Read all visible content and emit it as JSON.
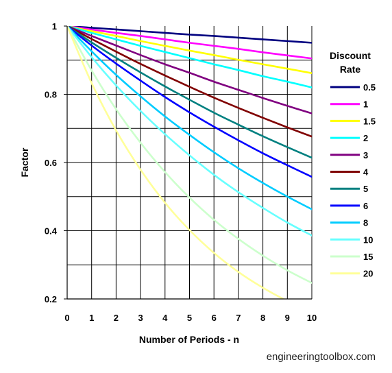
{
  "chart_data": {
    "type": "line",
    "xlabel": "Number of Periods - n",
    "ylabel": "Factor",
    "xlim": [
      0,
      10
    ],
    "ylim": [
      0.2,
      1
    ],
    "x_ticks": [
      "0",
      "1",
      "2",
      "3",
      "4",
      "5",
      "6",
      "7",
      "8",
      "9",
      "10"
    ],
    "y_ticks": [
      {
        "value": 0.2,
        "label": "0.2"
      },
      {
        "value": 0.4,
        "label": "0.4"
      },
      {
        "value": 0.6,
        "label": "0.6"
      },
      {
        "value": 0.8,
        "label": "0.8"
      },
      {
        "value": 1.0,
        "label": "1"
      }
    ],
    "grid": true,
    "x": [
      0,
      1,
      2,
      3,
      4,
      5,
      6,
      7,
      8,
      9,
      10
    ],
    "legend_title": "Discount\nRate",
    "legend_position": "right",
    "series": [
      {
        "name": "0.5",
        "color": "#000080",
        "values": [
          1,
          0.995,
          0.99,
          0.985,
          0.98,
          0.975,
          0.971,
          0.966,
          0.961,
          0.956,
          0.951
        ]
      },
      {
        "name": "1",
        "color": "#ff00ff",
        "values": [
          1,
          0.99,
          0.98,
          0.971,
          0.961,
          0.951,
          0.942,
          0.933,
          0.923,
          0.914,
          0.905
        ]
      },
      {
        "name": "1.5",
        "color": "#ffff00",
        "values": [
          1,
          0.985,
          0.971,
          0.956,
          0.942,
          0.928,
          0.915,
          0.901,
          0.888,
          0.875,
          0.862
        ]
      },
      {
        "name": "2",
        "color": "#00ffff",
        "values": [
          1,
          0.98,
          0.961,
          0.942,
          0.924,
          0.906,
          0.888,
          0.871,
          0.853,
          0.837,
          0.82
        ]
      },
      {
        "name": "3",
        "color": "#800080",
        "values": [
          1,
          0.971,
          0.943,
          0.915,
          0.888,
          0.863,
          0.837,
          0.813,
          0.789,
          0.766,
          0.744
        ]
      },
      {
        "name": "4",
        "color": "#800000",
        "values": [
          1,
          0.962,
          0.925,
          0.889,
          0.855,
          0.822,
          0.79,
          0.76,
          0.731,
          0.703,
          0.676
        ]
      },
      {
        "name": "5",
        "color": "#008080",
        "values": [
          1,
          0.952,
          0.907,
          0.864,
          0.823,
          0.784,
          0.746,
          0.711,
          0.677,
          0.645,
          0.614
        ]
      },
      {
        "name": "6",
        "color": "#0000ff",
        "values": [
          1,
          0.943,
          0.89,
          0.84,
          0.792,
          0.747,
          0.705,
          0.665,
          0.627,
          0.592,
          0.558
        ]
      },
      {
        "name": "8",
        "color": "#00ccff",
        "values": [
          1,
          0.926,
          0.857,
          0.794,
          0.735,
          0.681,
          0.63,
          0.583,
          0.54,
          0.5,
          0.463
        ]
      },
      {
        "name": "10",
        "color": "#66ffff",
        "values": [
          1,
          0.909,
          0.826,
          0.751,
          0.683,
          0.621,
          0.564,
          0.513,
          0.467,
          0.424,
          0.386
        ]
      },
      {
        "name": "15",
        "color": "#ccffcc",
        "values": [
          1,
          0.87,
          0.756,
          0.658,
          0.572,
          0.497,
          0.432,
          0.376,
          0.327,
          0.284,
          0.247
        ]
      },
      {
        "name": "20",
        "color": "#ffff99",
        "values": [
          1,
          0.833,
          0.694,
          0.579,
          0.482,
          0.402,
          0.335,
          0.279,
          0.233,
          0.194,
          0.162
        ]
      }
    ]
  },
  "credit": "engineeringtoolbox.com"
}
